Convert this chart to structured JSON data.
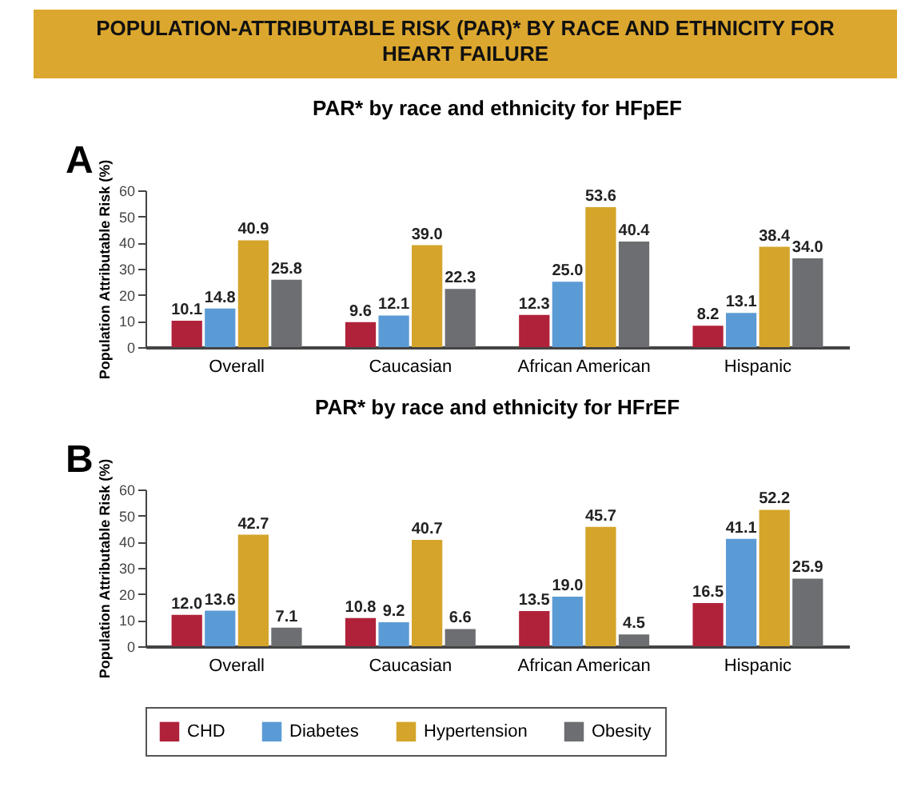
{
  "chart_data": [
    {
      "type": "bar",
      "title": "POPULATION-ATTRIBUTABLE RISK (PAR)* BY RACE AND ETHNICITY FOR HEART FAILURE",
      "subtitle": "PAR* by race and ethnicity for HFpEF",
      "annotations": [
        "A"
      ],
      "ylabel": "Population Attributable Risk (%)",
      "categories": [
        "Overall",
        "Caucasian",
        "African American",
        "Hispanic"
      ],
      "series": [
        {
          "name": "CHD",
          "color": "#b0223a",
          "values": [
            10.1,
            9.6,
            12.3,
            8.2
          ],
          "value_labels": [
            "10.1",
            "9.6",
            "12.3",
            "8.2"
          ]
        },
        {
          "name": "Diabetes",
          "color": "#5b9bd5",
          "values": [
            14.8,
            12.1,
            25.0,
            13.1
          ],
          "value_labels": [
            "14.8",
            "12.1",
            "25.0",
            "13.1"
          ]
        },
        {
          "name": "Hypertension",
          "color": "#d4a52a",
          "values": [
            40.9,
            39.0,
            53.6,
            38.4
          ],
          "value_labels": [
            "40.9",
            "39.0",
            "53.6",
            "38.4"
          ]
        },
        {
          "name": "Obesity",
          "color": "#6d6e71",
          "values": [
            25.8,
            22.3,
            40.4,
            34.0
          ],
          "value_labels": [
            "25.8",
            "22.3",
            "40.4",
            "34.0"
          ]
        }
      ],
      "ylim": [
        0,
        60
      ],
      "yticks": [
        0,
        10,
        20,
        30,
        40,
        50,
        60
      ],
      "legend": "bottom"
    },
    {
      "type": "bar",
      "title": "PAR* by race and ethnicity for HFrEF",
      "annotations": [
        "B"
      ],
      "ylabel": "Population Attributable Risk (%)",
      "categories": [
        "Overall",
        "Caucasian",
        "African American",
        "Hispanic"
      ],
      "series": [
        {
          "name": "CHD",
          "color": "#b0223a",
          "values": [
            12.0,
            10.8,
            13.5,
            16.5
          ],
          "value_labels": [
            "12.0",
            "10.8",
            "13.5",
            "16.5"
          ]
        },
        {
          "name": "Diabetes",
          "color": "#5b9bd5",
          "values": [
            13.6,
            9.2,
            19.0,
            41.1
          ],
          "value_labels": [
            "13.6",
            "9.2",
            "19.0",
            "41.1"
          ]
        },
        {
          "name": "Hypertension",
          "color": "#d4a52a",
          "values": [
            42.7,
            40.7,
            45.7,
            52.2
          ],
          "value_labels": [
            "42.7",
            "40.7",
            "45.7",
            "52.2"
          ]
        },
        {
          "name": "Obesity",
          "color": "#6d6e71",
          "values": [
            7.1,
            6.6,
            4.5,
            25.9
          ],
          "value_labels": [
            "7.1",
            "6.6",
            "4.5",
            "25.9"
          ]
        }
      ],
      "ylim": [
        0,
        60
      ],
      "yticks": [
        0,
        10,
        20,
        30,
        40,
        50,
        60
      ],
      "legend": "bottom"
    }
  ]
}
